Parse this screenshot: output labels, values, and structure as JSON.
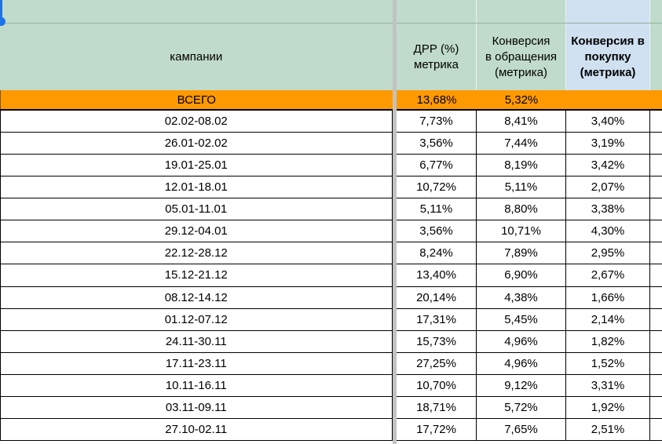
{
  "app": {
    "type": "spreadsheet-grid"
  },
  "colors": {
    "header_green": "#c0dbcb",
    "selected_blue": "#cfe0f0",
    "total_orange": "#ff9900",
    "divider_gray": "#c2c2c2",
    "grid_black": "#000000",
    "cursor_blue": "#1a73e8",
    "cell_text": "#000000"
  },
  "table": {
    "headers": [
      {
        "id": "campaign",
        "label": "кампании"
      },
      {
        "id": "drr",
        "label": "ДРР (%)\nметрика"
      },
      {
        "id": "conv_leads",
        "label": "Конверсия\nв обращения\n(метрика)"
      },
      {
        "id": "conv_purchase",
        "label": "Конверсия в\nпокупку\n(метрика)"
      },
      {
        "id": "extra",
        "label": ""
      }
    ],
    "total_row": {
      "label": "ВСЕГО",
      "drr": "13,68%",
      "conv_leads": "5,32%",
      "conv_purchase": ""
    },
    "rows": [
      {
        "period": "02.02-08.02",
        "drr": "7,73%",
        "conv_leads": "8,41%",
        "conv_purchase": "3,40%"
      },
      {
        "period": "26.01-02.02",
        "drr": "3,56%",
        "conv_leads": "7,44%",
        "conv_purchase": "3,19%"
      },
      {
        "period": "19.01-25.01",
        "drr": "6,77%",
        "conv_leads": "8,19%",
        "conv_purchase": "3,42%"
      },
      {
        "period": "12.01-18.01",
        "drr": "10,72%",
        "conv_leads": "5,11%",
        "conv_purchase": "2,07%"
      },
      {
        "period": "05.01-11.01",
        "drr": "5,11%",
        "conv_leads": "8,80%",
        "conv_purchase": "3,38%"
      },
      {
        "period": "29.12-04.01",
        "drr": "3,56%",
        "conv_leads": "10,71%",
        "conv_purchase": "4,30%"
      },
      {
        "period": "22.12-28.12",
        "drr": "8,24%",
        "conv_leads": "7,89%",
        "conv_purchase": "2,95%"
      },
      {
        "period": "15.12-21.12",
        "drr": "13,40%",
        "conv_leads": "6,90%",
        "conv_purchase": "2,67%"
      },
      {
        "period": "08.12-14.12",
        "drr": "20,14%",
        "conv_leads": "4,38%",
        "conv_purchase": "1,66%"
      },
      {
        "period": "01.12-07.12",
        "drr": "17,31%",
        "conv_leads": "5,45%",
        "conv_purchase": "2,14%"
      },
      {
        "period": "24.11-30.11",
        "drr": "15,73%",
        "conv_leads": "4,96%",
        "conv_purchase": "1,82%"
      },
      {
        "period": "17.11-23.11",
        "drr": "27,25%",
        "conv_leads": "4,96%",
        "conv_purchase": "1,52%"
      },
      {
        "period": "10.11-16.11",
        "drr": "10,70%",
        "conv_leads": "9,12%",
        "conv_purchase": "3,31%"
      },
      {
        "period": "03.11-09.11",
        "drr": "18,71%",
        "conv_leads": "5,72%",
        "conv_purchase": "1,92%"
      },
      {
        "period": "27.10-02.11",
        "drr": "17,72%",
        "conv_leads": "7,65%",
        "conv_purchase": "2,51%"
      }
    ]
  }
}
